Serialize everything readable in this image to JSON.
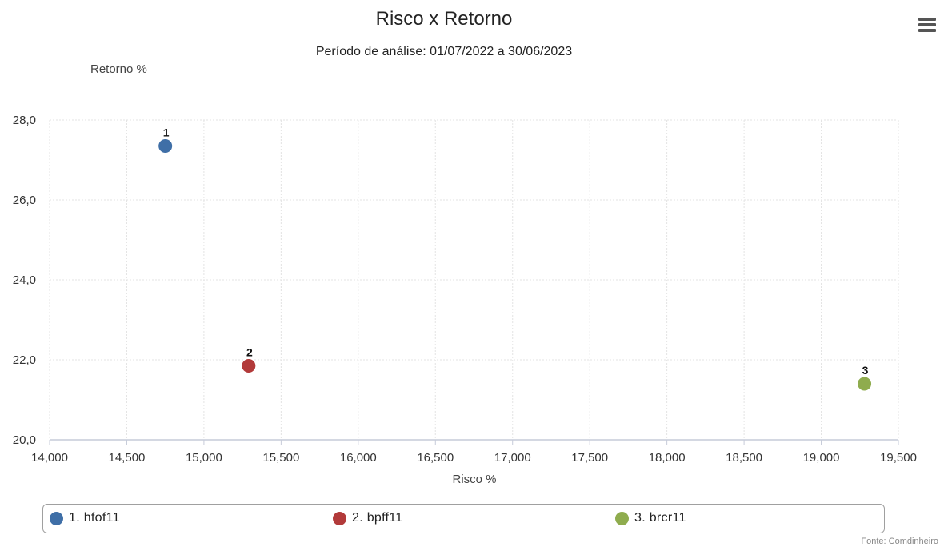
{
  "chart_data": {
    "type": "scatter",
    "title": "Risco x Retorno",
    "subtitle": "Período de análise: 01/07/2022 a 30/06/2023",
    "xlabel": "Risco %",
    "ylabel": "Retorno %",
    "xlim": [
      14000,
      19500
    ],
    "ylim": [
      20.0,
      28.0
    ],
    "x_ticks": [
      "14,000",
      "14,500",
      "15,000",
      "15,500",
      "16,000",
      "16,500",
      "17,000",
      "17,500",
      "18,000",
      "18,500",
      "19,000",
      "19,500"
    ],
    "y_ticks": [
      "20,0",
      "22,0",
      "24,0",
      "26,0",
      "28,0"
    ],
    "grid": true,
    "legend_position": "bottom",
    "series": [
      {
        "name": "1. hfof11",
        "point_label": "1",
        "x": 14750,
        "y": 27.35,
        "color": "#3f6fa7"
      },
      {
        "name": "2. bpff11",
        "point_label": "2",
        "x": 15290,
        "y": 21.85,
        "color": "#b23a3a"
      },
      {
        "name": "3. brcr11",
        "point_label": "3",
        "x": 19280,
        "y": 21.4,
        "color": "#8fac4e"
      }
    ]
  },
  "menu_icon": "hamburger-menu-icon",
  "source": "Fonte: Comdinheiro"
}
